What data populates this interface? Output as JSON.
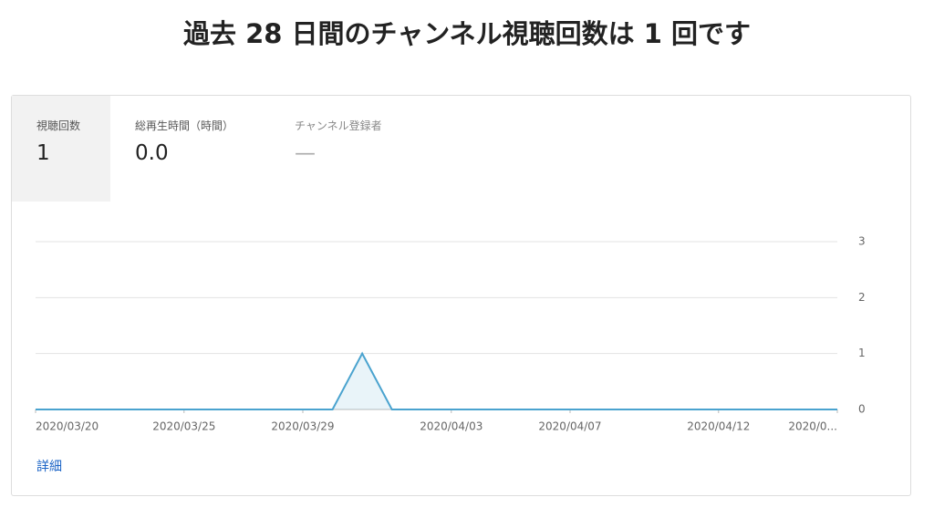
{
  "header": {
    "title": "過去 28 日間のチャンネル視聴回数は 1 回です"
  },
  "metrics": [
    {
      "label": "視聴回数",
      "value": "1"
    },
    {
      "label": "総再生時間（時間）",
      "value": "0.0"
    },
    {
      "label": "チャンネル登録者",
      "value": "—"
    }
  ],
  "chart_data": {
    "type": "area",
    "categories": [
      "2020/03/20",
      null,
      null,
      null,
      null,
      "2020/03/25",
      null,
      null,
      null,
      "2020/03/29",
      null,
      null,
      null,
      null,
      "2020/04/03",
      null,
      null,
      null,
      "2020/04/07",
      null,
      null,
      null,
      null,
      "2020/04/12",
      null,
      null,
      null,
      "2020/0..."
    ],
    "values": [
      0,
      0,
      0,
      0,
      0,
      0,
      0,
      0,
      0,
      0,
      0,
      1,
      0,
      0,
      0,
      0,
      0,
      0,
      0,
      0,
      0,
      0,
      0,
      0,
      0,
      0,
      0,
      0
    ],
    "color": "#4aa3cf",
    "ylim": [
      0,
      3
    ],
    "yticks": [
      0,
      1,
      2,
      3
    ],
    "grid": true
  },
  "link": "詳細"
}
